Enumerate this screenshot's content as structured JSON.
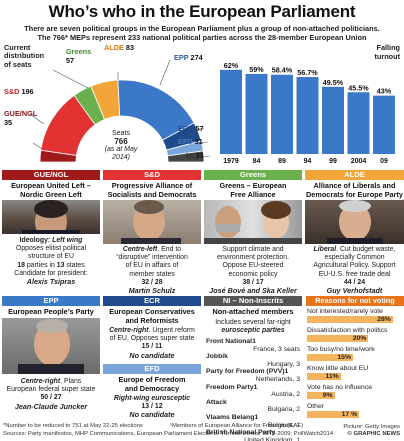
{
  "title": "Who’s who in the European Parliament",
  "subtitle_lines": [
    "There are seven political groups in the European Parliament plus a group of non-attached politicians.",
    "The 766* MEPs represent 233 national political parties across the 28-member European Union"
  ],
  "seats": {
    "heading_lines": [
      "Current",
      "distribution",
      "of seats"
    ],
    "total_label": "Seats",
    "total": "766",
    "asof": "(as at May 2014)",
    "groups": [
      {
        "name": "Greens",
        "value": "57",
        "color": "#6ab04c"
      },
      {
        "name": "ALDE",
        "value": "83",
        "color": "#f2a63a"
      },
      {
        "name": "EPP",
        "value": "274",
        "color": "#3c78c8"
      },
      {
        "name": "S&D",
        "value": "196",
        "color": "#e23232"
      },
      {
        "name": "GUE/NGL",
        "value": "35",
        "color": "#a01a1a"
      },
      {
        "name": "ECR",
        "value": "57",
        "color": "#1f4a8c"
      },
      {
        "name": "EFD",
        "value": "31",
        "color": "#7aa6dc"
      },
      {
        "name": "NI",
        "value": "33",
        "color": "#444444"
      }
    ]
  },
  "turnout": {
    "label_lines": [
      "Falling",
      "turnout"
    ],
    "chart_data": {
      "type": "bar",
      "categories": [
        "1979",
        "84",
        "89",
        "94",
        "99",
        "2004",
        "09"
      ],
      "value_labels": [
        "62%",
        "59%",
        "58.4%",
        "56.7%",
        "49.5%",
        "45.5%",
        "43%"
      ],
      "values": [
        62,
        59,
        58.4,
        56.7,
        49.5,
        45.5,
        43
      ],
      "color": "#3c78c8"
    }
  },
  "panels": {
    "gue": {
      "head": "GUE/NGL",
      "name_lines": [
        "European United Left –",
        "Nordic Green Left"
      ],
      "ideology_label": "Ideology:",
      "ideology": "Left wing",
      "desc_lines": [
        "Opposes elitist political",
        "structure of EU"
      ],
      "parties_prefix": "18",
      "parties_mid": " parties in ",
      "parties_count": "13",
      "parties_suffix": " states",
      "cand_line": "Candidate for president:",
      "leader": "Alexis Tsipras",
      "color": "#a01a1a"
    },
    "sd": {
      "head": "S&D",
      "name_lines": [
        "Progressive Alliance of",
        "Socialists and Democrats"
      ],
      "ideology": "Centre-left",
      "desc_lines": [
        ". End to",
        "“disruptive” intervention",
        "of EU in affairs of",
        "member states"
      ],
      "stats": "32 / 28",
      "leader": "Martin Schulz",
      "color": "#e23232"
    },
    "greens": {
      "head": "Greens",
      "name_lines": [
        "Greens – European",
        "Free Alliance"
      ],
      "desc_lines": [
        "Support climate and",
        "environment protection.",
        "Oppose EU-steered",
        "economic policy"
      ],
      "stats": "38 / 17",
      "leader": "José Bové and Ska Keller",
      "color": "#6ab04c"
    },
    "alde": {
      "head": "ALDE",
      "name_lines": [
        "Alliance of Liberals and",
        "Democrats for Europe Party"
      ],
      "ideology": "Liberal",
      "desc_lines": [
        ". Cut budget waste,",
        "especially Common",
        "Agricultural Policy. Support",
        "EU-U.S. free trade deal"
      ],
      "stats": "44 / 24",
      "leader": "Guy Verhofstadt",
      "color": "#f2a63a"
    },
    "epp": {
      "head": "EPP",
      "name": "European People’s Party",
      "ideology": "Centre-right",
      "desc_lines": [
        ". Plans",
        "European federal super state"
      ],
      "stats": "50 / 27",
      "leader": "Jean-Claude Juncker",
      "color": "#3c78c8"
    },
    "ecr": {
      "head": "ECR",
      "name_lines": [
        "European Conservatives",
        "and Reformists"
      ],
      "ideology": "Centre-right",
      "desc_lines": [
        ". Urgent reform",
        "of EU. Opposes super state"
      ],
      "stats": "15 / 11",
      "leader": "No candidate",
      "color": "#1f4a8c"
    },
    "efd": {
      "head": "EFD",
      "name_lines": [
        "Europe of Freedom",
        "and Democracy"
      ],
      "ideology": "Right-wing eurosceptic",
      "stats": "13 / 12",
      "leader": "No candidate",
      "color": "#7aa6dc"
    },
    "ni": {
      "head": "NI – Non-Inscrits",
      "name": "Non-attached members",
      "desc_lines": [
        "Includes several far-right",
        "eurosceptic parties"
      ],
      "parties": [
        {
          "name": "Front National",
          "sup": "1",
          "country": "France",
          "seats": "3 seats"
        },
        {
          "name": "Jobbik",
          "sup": "",
          "country": "Hungary",
          "seats": "3"
        },
        {
          "name": "Party for Freedom (PVV)",
          "sup": "1",
          "country": "Netherlands",
          "seats": "3"
        },
        {
          "name": "Freedom Party",
          "sup": "1",
          "country": "Austria",
          "seats": "2"
        },
        {
          "name": "Attack",
          "sup": "",
          "country": "Bulgaria",
          "seats": "2"
        },
        {
          "name": "Vlaams Belang",
          "sup": "1",
          "country": "Belgium",
          "seats": "1"
        },
        {
          "name": "British National Party",
          "sup": "",
          "country": "United Kingdom",
          "seats": "1"
        }
      ],
      "color": "#555555"
    }
  },
  "reasons": {
    "head": "Reasons for not voting",
    "chart_data": {
      "type": "bar",
      "categories": [
        "Not interested/rarely vote",
        "Dissatisfaction with politics",
        "Too busy/no time/work",
        "Know little about EU",
        "Vote has no influence",
        "Other"
      ],
      "values": [
        28,
        20,
        15,
        11,
        9,
        17
      ],
      "value_labels": [
        "28%",
        "20%",
        "15%",
        "11%",
        "9%",
        "17 %"
      ],
      "color": "#f4b35e"
    }
  },
  "footnotes": [
    "*Number to be reduced to 751 at May 22-25 elections",
    "Sources: Party manifestos, MHP Communications, European Parliament Elections: Turnout trends, 1979-2009; PollWatch2014"
  ],
  "footnote_right": "¹Members of European Alliance for Freedom (EAF)",
  "credit": [
    "Picture: Getty Images",
    "© GRAPHIC NEWS"
  ]
}
